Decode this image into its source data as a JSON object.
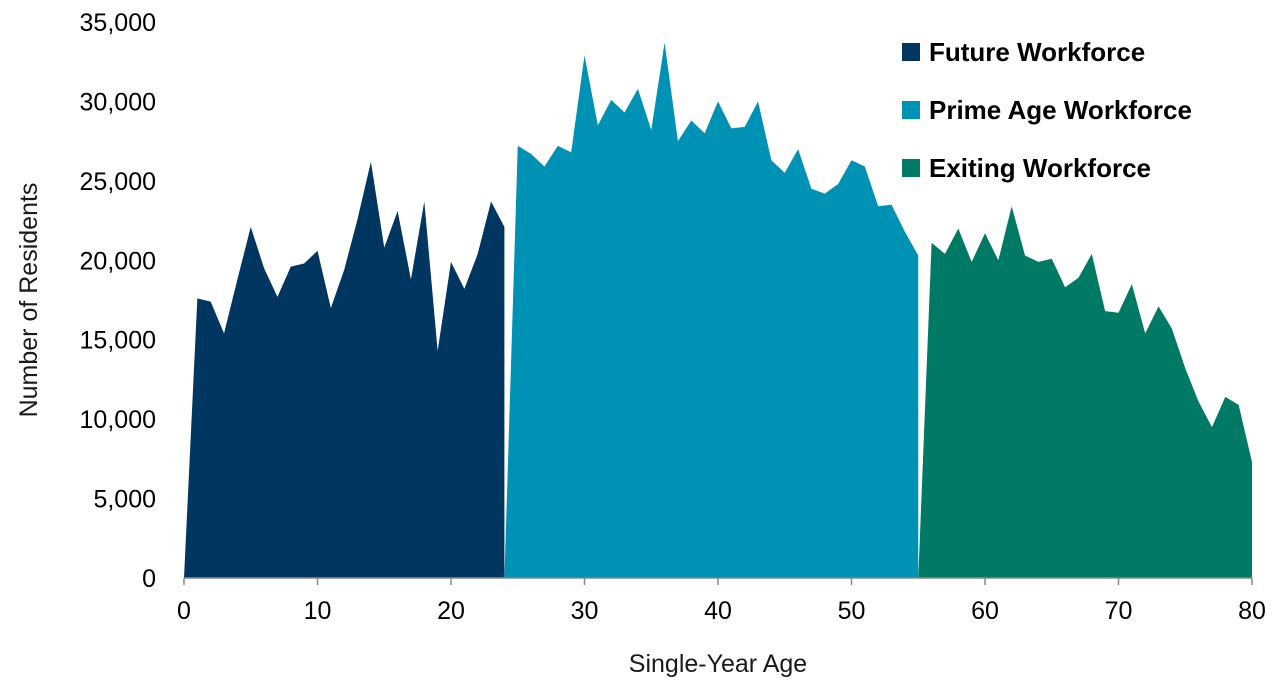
{
  "chart_data": {
    "type": "area",
    "title": "",
    "xlabel": "Single-Year Age",
    "ylabel": "Number of Residents",
    "xlim": [
      0,
      80
    ],
    "ylim": [
      0,
      35000
    ],
    "x_ticks": [
      "0",
      "10",
      "20",
      "30",
      "40",
      "50",
      "60",
      "70",
      "80"
    ],
    "y_ticks": [
      "0",
      "5,000",
      "10,000",
      "15,000",
      "20,000",
      "25,000",
      "30,000",
      "35,000"
    ],
    "grid": false,
    "legend_position": "top-right",
    "series": [
      {
        "name": "Future Workforce",
        "color": "#003660",
        "x": [
          0,
          1,
          2,
          3,
          4,
          5,
          6,
          7,
          8,
          9,
          10,
          11,
          12,
          13,
          14,
          15,
          16,
          17,
          18,
          19,
          20,
          21,
          22,
          23,
          24
        ],
        "values": [
          0,
          17600,
          17400,
          15400,
          18800,
          22100,
          19500,
          17700,
          19600,
          19800,
          20600,
          17000,
          19400,
          22600,
          26200,
          20800,
          23100,
          18800,
          23700,
          14300,
          19900,
          18200,
          20400,
          23700,
          22100
        ]
      },
      {
        "name": "Prime Age Workforce",
        "color": "#0092B4",
        "x": [
          24,
          25,
          26,
          27,
          28,
          29,
          30,
          31,
          32,
          33,
          34,
          35,
          36,
          37,
          38,
          39,
          40,
          41,
          42,
          43,
          44,
          45,
          46,
          47,
          48,
          49,
          50,
          51,
          52,
          53,
          54,
          55
        ],
        "values": [
          0,
          27200,
          26700,
          25900,
          27200,
          26800,
          32900,
          28500,
          30100,
          29300,
          30800,
          28200,
          33700,
          27500,
          28800,
          28000,
          30000,
          28300,
          28400,
          30000,
          26300,
          25500,
          27000,
          24500,
          24200,
          24800,
          26300,
          25900,
          23400,
          23500,
          21800,
          20300
        ]
      },
      {
        "name": "Exiting Workforce",
        "color": "#007A64",
        "x": [
          55,
          56,
          57,
          58,
          59,
          60,
          61,
          62,
          63,
          64,
          65,
          66,
          67,
          68,
          69,
          70,
          71,
          72,
          73,
          74,
          75,
          76,
          77,
          78,
          79,
          80
        ],
        "values": [
          0,
          21100,
          20400,
          22000,
          19900,
          21700,
          20000,
          23400,
          20300,
          19900,
          20100,
          18300,
          18900,
          20400,
          16800,
          16700,
          18500,
          15400,
          17100,
          15700,
          13200,
          11100,
          9500,
          11400,
          10900,
          7300
        ]
      }
    ]
  }
}
